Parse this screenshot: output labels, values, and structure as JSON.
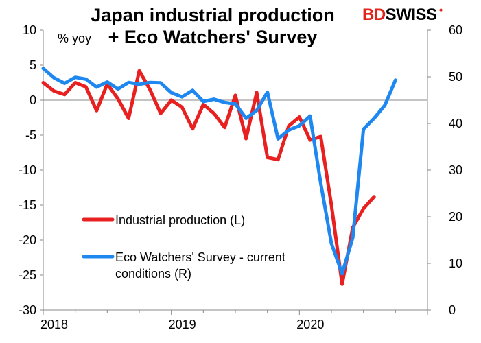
{
  "title_line1": "Japan industrial production",
  "title_line2": "+ Eco Watchers' Survey",
  "logo": {
    "part1": "BD",
    "part2": "SWISS",
    "accent": "#e2231a"
  },
  "chart_data": {
    "type": "line",
    "title": "Japan industrial production + Eco Watchers' Survey",
    "left_axis": {
      "unit_label": "% yoy",
      "ylim": [
        -30,
        10
      ],
      "ticks": [
        10,
        5,
        0,
        -5,
        -10,
        -15,
        -20,
        -25,
        -30
      ]
    },
    "right_axis": {
      "ylim": [
        0,
        60
      ],
      "ticks": [
        60,
        50,
        40,
        30,
        20,
        10,
        0
      ]
    },
    "x_ticks": [
      "2018",
      "2019",
      "2020"
    ],
    "x_range": [
      "2018-01",
      "2020-12"
    ],
    "grid": false,
    "legend_position": "bottom-left",
    "series": [
      {
        "name": "Industrial production (L)",
        "axis": "left",
        "color": "#e8201f",
        "x": [
          "2018-01",
          "2018-02",
          "2018-03",
          "2018-04",
          "2018-05",
          "2018-06",
          "2018-07",
          "2018-08",
          "2018-09",
          "2018-10",
          "2018-11",
          "2018-12",
          "2019-01",
          "2019-02",
          "2019-03",
          "2019-04",
          "2019-05",
          "2019-06",
          "2019-07",
          "2019-08",
          "2019-09",
          "2019-10",
          "2019-11",
          "2019-12",
          "2020-01",
          "2020-02",
          "2020-03",
          "2020-04",
          "2020-05",
          "2020-06",
          "2020-07",
          "2020-08"
        ],
        "values": [
          2.5,
          1.3,
          0.8,
          2.5,
          1.9,
          -1.5,
          2.3,
          0.2,
          -2.6,
          4.2,
          1.5,
          -1.9,
          0.0,
          -1.0,
          -4.1,
          -0.6,
          -1.9,
          -3.9,
          0.7,
          -5.5,
          1.1,
          -8.2,
          -8.5,
          -3.7,
          -2.4,
          -5.7,
          -5.2,
          -15.0,
          -26.3,
          -18.2,
          -15.5,
          -13.8
        ]
      },
      {
        "name": "Eco Watchers' Survey - current conditions (R)",
        "axis": "right",
        "color": "#1e88f0",
        "x": [
          "2018-01",
          "2018-02",
          "2018-03",
          "2018-04",
          "2018-05",
          "2018-06",
          "2018-07",
          "2018-08",
          "2018-09",
          "2018-10",
          "2018-11",
          "2018-12",
          "2019-01",
          "2019-02",
          "2019-03",
          "2019-04",
          "2019-05",
          "2019-06",
          "2019-07",
          "2019-08",
          "2019-09",
          "2019-10",
          "2019-11",
          "2019-12",
          "2020-01",
          "2020-02",
          "2020-03",
          "2020-04",
          "2020-05",
          "2020-06",
          "2020-07",
          "2020-08",
          "2020-09",
          "2020-10"
        ],
        "values": [
          51.8,
          49.8,
          48.6,
          49.9,
          49.5,
          47.8,
          48.9,
          47.4,
          48.8,
          48.4,
          48.8,
          48.7,
          46.6,
          45.7,
          47.1,
          44.7,
          45.2,
          44.5,
          44.2,
          41.1,
          42.8,
          46.7,
          36.7,
          38.6,
          39.5,
          41.6,
          27.2,
          14.3,
          7.8,
          15.5,
          38.8,
          41.1,
          43.9,
          49.3
        ]
      }
    ]
  }
}
